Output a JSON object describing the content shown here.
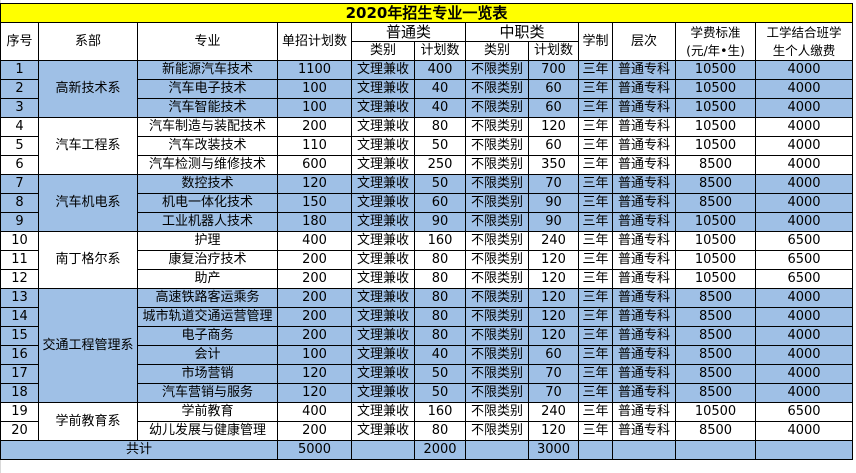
{
  "title": "2020年招生专业一览表",
  "headers": {
    "index": "序号",
    "department": "系部",
    "major": "专业",
    "single_plan": "单招计划数",
    "general_group": "普通类",
    "vocational_group": "中职类",
    "category": "类别",
    "plan": "计划数",
    "duration": "学制",
    "level": "层次",
    "tuition_line1": "学费标准",
    "tuition_line2": "(元/年•生)",
    "workstudy_line1": "工学结合班学",
    "workstudy_line2": "生个人缴费"
  },
  "departments": [
    {
      "name": "高新技术系",
      "shade": "blue",
      "rows": 3
    },
    {
      "name": "汽车工程系",
      "shade": "white",
      "rows": 3
    },
    {
      "name": "汽车机电系",
      "shade": "blue",
      "rows": 3
    },
    {
      "name": "南丁格尔系",
      "shade": "white",
      "rows": 3
    },
    {
      "name": "交通工程管理系",
      "shade": "blue",
      "rows": 6
    },
    {
      "name": "学前教育系",
      "shade": "white",
      "rows": 2
    }
  ],
  "rows": [
    {
      "no": "1",
      "major": "新能源汽车技术",
      "single": "1100",
      "gen_cat": "文理兼收",
      "gen_plan": "400",
      "voc_cat": "不限类别",
      "voc_plan": "700",
      "dur": "三年",
      "level": "普通专科",
      "tuition": "10500",
      "ws": "4000"
    },
    {
      "no": "2",
      "major": "汽车电子技术",
      "single": "100",
      "gen_cat": "文理兼收",
      "gen_plan": "40",
      "voc_cat": "不限类别",
      "voc_plan": "60",
      "dur": "三年",
      "level": "普通专科",
      "tuition": "10500",
      "ws": "4000"
    },
    {
      "no": "3",
      "major": "汽车智能技术",
      "single": "100",
      "gen_cat": "文理兼收",
      "gen_plan": "40",
      "voc_cat": "不限类别",
      "voc_plan": "60",
      "dur": "三年",
      "level": "普通专科",
      "tuition": "10500",
      "ws": "4000"
    },
    {
      "no": "4",
      "major": "汽车制造与装配技术",
      "single": "200",
      "gen_cat": "文理兼收",
      "gen_plan": "80",
      "voc_cat": "不限类别",
      "voc_plan": "120",
      "dur": "三年",
      "level": "普通专科",
      "tuition": "10500",
      "ws": "4000"
    },
    {
      "no": "5",
      "major": "汽车改装技术",
      "single": "110",
      "gen_cat": "文理兼收",
      "gen_plan": "50",
      "voc_cat": "不限类别",
      "voc_plan": "60",
      "dur": "三年",
      "level": "普通专科",
      "tuition": "10500",
      "ws": "4000"
    },
    {
      "no": "6",
      "major": "汽车检测与维修技术",
      "single": "600",
      "gen_cat": "文理兼收",
      "gen_plan": "250",
      "voc_cat": "不限类别",
      "voc_plan": "350",
      "dur": "三年",
      "level": "普通专科",
      "tuition": "8500",
      "ws": "4000"
    },
    {
      "no": "7",
      "major": "数控技术",
      "single": "120",
      "gen_cat": "文理兼收",
      "gen_plan": "50",
      "voc_cat": "不限类别",
      "voc_plan": "70",
      "dur": "三年",
      "level": "普通专科",
      "tuition": "8500",
      "ws": "4000"
    },
    {
      "no": "8",
      "major": "机电一体化技术",
      "single": "150",
      "gen_cat": "文理兼收",
      "gen_plan": "60",
      "voc_cat": "不限类别",
      "voc_plan": "90",
      "dur": "三年",
      "level": "普通专科",
      "tuition": "8500",
      "ws": "4000"
    },
    {
      "no": "9",
      "major": "工业机器人技术",
      "single": "180",
      "gen_cat": "文理兼收",
      "gen_plan": "90",
      "voc_cat": "不限类别",
      "voc_plan": "90",
      "dur": "三年",
      "level": "普通专科",
      "tuition": "10500",
      "ws": "4000"
    },
    {
      "no": "10",
      "major": "护理",
      "single": "400",
      "gen_cat": "文理兼收",
      "gen_plan": "160",
      "voc_cat": "不限类别",
      "voc_plan": "240",
      "dur": "三年",
      "level": "普通专科",
      "tuition": "10500",
      "ws": "6500"
    },
    {
      "no": "11",
      "major": "康复治疗技术",
      "single": "200",
      "gen_cat": "文理兼收",
      "gen_plan": "80",
      "voc_cat": "不限类别",
      "voc_plan": "120",
      "dur": "三年",
      "level": "普通专科",
      "tuition": "10500",
      "ws": "6500"
    },
    {
      "no": "12",
      "major": "助产",
      "single": "200",
      "gen_cat": "文理兼收",
      "gen_plan": "80",
      "voc_cat": "不限类别",
      "voc_plan": "120",
      "dur": "三年",
      "level": "普通专科",
      "tuition": "10500",
      "ws": "6500"
    },
    {
      "no": "13",
      "major": "高速铁路客运乘务",
      "single": "200",
      "gen_cat": "文理兼收",
      "gen_plan": "80",
      "voc_cat": "不限类别",
      "voc_plan": "120",
      "dur": "三年",
      "level": "普通专科",
      "tuition": "8500",
      "ws": "4000"
    },
    {
      "no": "14",
      "major": "城市轨道交通运营管理",
      "single": "200",
      "gen_cat": "文理兼收",
      "gen_plan": "80",
      "voc_cat": "不限类别",
      "voc_plan": "120",
      "dur": "三年",
      "level": "普通专科",
      "tuition": "8500",
      "ws": "4000"
    },
    {
      "no": "15",
      "major": "电子商务",
      "single": "200",
      "gen_cat": "文理兼收",
      "gen_plan": "80",
      "voc_cat": "不限类别",
      "voc_plan": "120",
      "dur": "三年",
      "level": "普通专科",
      "tuition": "8500",
      "ws": "4000"
    },
    {
      "no": "16",
      "major": "会计",
      "single": "100",
      "gen_cat": "文理兼收",
      "gen_plan": "40",
      "voc_cat": "不限类别",
      "voc_plan": "60",
      "dur": "三年",
      "level": "普通专科",
      "tuition": "8500",
      "ws": "4000"
    },
    {
      "no": "17",
      "major": "市场营销",
      "single": "120",
      "gen_cat": "文理兼收",
      "gen_plan": "50",
      "voc_cat": "不限类别",
      "voc_plan": "70",
      "dur": "三年",
      "level": "普通专科",
      "tuition": "8500",
      "ws": "4000"
    },
    {
      "no": "18",
      "major": "汽车营销与服务",
      "single": "120",
      "gen_cat": "文理兼收",
      "gen_plan": "50",
      "voc_cat": "不限类别",
      "voc_plan": "70",
      "dur": "三年",
      "level": "普通专科",
      "tuition": "8500",
      "ws": "4000"
    },
    {
      "no": "19",
      "major": "学前教育",
      "single": "400",
      "gen_cat": "文理兼收",
      "gen_plan": "160",
      "voc_cat": "不限类别",
      "voc_plan": "240",
      "dur": "三年",
      "level": "普通专科",
      "tuition": "10500",
      "ws": "6500"
    },
    {
      "no": "20",
      "major": "幼儿发展与健康管理",
      "single": "200",
      "gen_cat": "文理兼收",
      "gen_plan": "80",
      "voc_cat": "不限类别",
      "voc_plan": "120",
      "dur": "三年",
      "level": "普通专科",
      "tuition": "8500",
      "ws": "4000"
    }
  ],
  "total": {
    "label": "共计",
    "single": "5000",
    "gen_plan": "2000",
    "voc_plan": "3000"
  },
  "colors": {
    "title_bg": "#ffff00",
    "row_blue": "#9fc0e6",
    "row_white": "#ffffff",
    "border": "#000000"
  }
}
